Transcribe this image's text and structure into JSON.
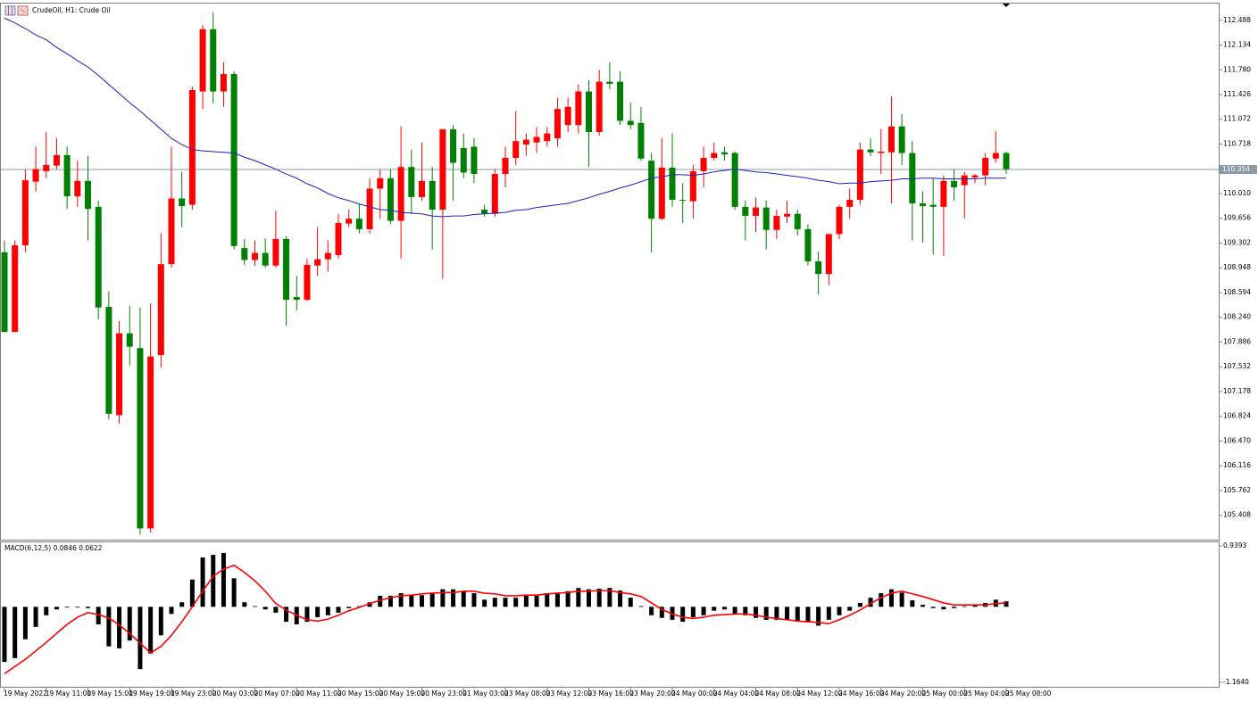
{
  "chart_data": [
    {
      "type": "candlestick",
      "title": "CrudeOil, H1:  Crude Oil",
      "categories": [
        "19 May 2022",
        null,
        null,
        null,
        "19 May 11:00",
        null,
        null,
        null,
        "19 May 15:00",
        null,
        null,
        null,
        "19 May 19:00",
        null,
        null,
        null,
        "19 May 23:00",
        null,
        null,
        null,
        "20 May 03:00",
        null,
        null,
        null,
        "20 May 07:00",
        null,
        null,
        null,
        "20 May 11:00",
        null,
        null,
        null,
        "20 May 15:00",
        null,
        null,
        null,
        "20 May 19:00",
        null,
        null,
        null,
        "20 May 23:00",
        null,
        null,
        null,
        "21 May 03:00",
        null,
        null,
        null,
        "23 May 08:00",
        null,
        null,
        null,
        "23 May 12:00",
        null,
        null,
        null,
        "23 May 16:00",
        null,
        null,
        null,
        "23 May 20:00",
        null,
        null,
        null,
        "24 May 00:00",
        null,
        null,
        null,
        "24 May 04:00",
        null,
        null,
        null,
        "24 May 08:00",
        null,
        null,
        null,
        "24 May 12:00",
        null,
        null,
        null,
        "24 May 16:00",
        null,
        null,
        null,
        "24 May 20:00",
        null,
        null,
        null,
        "25 May 00:00",
        null,
        null,
        null,
        "25 May 04:00",
        null,
        null,
        null,
        "25 May 08:00"
      ],
      "open": [
        109.17,
        108.03,
        109.27,
        110.18,
        110.33,
        110.41,
        110.56,
        109.97,
        110.19,
        109.82,
        108.39,
        106.84,
        108.01,
        107.8,
        105.22,
        107.7,
        109.0,
        109.94,
        109.85,
        111.47,
        112.36,
        111.47,
        111.72,
        109.23,
        109.06,
        109.16,
        108.98,
        109.36,
        108.53,
        108.49,
        108.98,
        109.07,
        109.13,
        109.58,
        109.65,
        109.5,
        110.08,
        110.23,
        109.62,
        110.39,
        109.96,
        110.19,
        109.78,
        110.93,
        110.66,
        110.68,
        109.78,
        109.72,
        110.29,
        110.52,
        110.71,
        110.74,
        110.76,
        110.8,
        110.99,
        110.99,
        111.47,
        110.89,
        111.61,
        111.61,
        111.05,
        111.02,
        110.48,
        109.65,
        110.38,
        109.92,
        109.9,
        110.33,
        110.52,
        110.6,
        110.59,
        109.82,
        109.69,
        109.81,
        109.49,
        109.68,
        109.72,
        109.5,
        109.04,
        108.86,
        109.43,
        109.82,
        109.92,
        110.64,
        110.59,
        110.6,
        110.97,
        110.59,
        109.87,
        109.85,
        109.82,
        110.19,
        110.13,
        110.24,
        110.27,
        110.51,
        110.59
      ],
      "high": [
        109.34,
        109.34,
        110.36,
        110.68,
        110.89,
        110.8,
        110.68,
        110.48,
        110.55,
        109.91,
        108.61,
        108.19,
        108.4,
        108.38,
        108.44,
        109.44,
        110.68,
        110.32,
        111.54,
        112.42,
        112.6,
        111.89,
        111.76,
        109.36,
        109.34,
        109.37,
        109.76,
        109.4,
        108.83,
        109.08,
        109.53,
        109.34,
        109.72,
        109.78,
        109.87,
        110.23,
        110.36,
        110.36,
        110.97,
        110.64,
        110.74,
        110.39,
        110.93,
        110.99,
        110.87,
        110.8,
        109.85,
        110.36,
        110.68,
        111.19,
        110.87,
        110.96,
        110.96,
        111.38,
        111.38,
        111.57,
        111.63,
        111.78,
        111.89,
        111.76,
        111.31,
        111.25,
        110.59,
        110.8,
        110.87,
        110.16,
        110.42,
        110.68,
        110.74,
        110.68,
        110.61,
        109.91,
        109.95,
        109.91,
        109.78,
        109.91,
        109.78,
        109.57,
        109.18,
        109.44,
        109.85,
        110.08,
        110.74,
        110.8,
        110.93,
        111.4,
        111.15,
        110.76,
        110.04,
        110.23,
        110.27,
        110.36,
        110.32,
        110.29,
        110.59,
        110.9,
        110.61
      ],
      "low": [
        108.03,
        108.03,
        109.17,
        110.04,
        110.23,
        110.36,
        109.79,
        109.82,
        109.34,
        108.21,
        106.78,
        106.72,
        107.55,
        105.13,
        105.16,
        107.52,
        108.95,
        109.53,
        109.78,
        111.22,
        111.3,
        111.25,
        109.21,
        108.99,
        108.98,
        108.95,
        108.95,
        108.12,
        108.34,
        108.47,
        108.83,
        108.89,
        109.08,
        109.53,
        109.44,
        109.44,
        109.65,
        109.57,
        109.08,
        109.72,
        109.91,
        109.21,
        108.79,
        109.91,
        110.23,
        110.16,
        109.68,
        109.68,
        110.1,
        110.42,
        110.55,
        110.59,
        110.68,
        110.68,
        110.89,
        110.87,
        110.39,
        110.84,
        111.5,
        110.99,
        110.93,
        110.48,
        109.17,
        109.63,
        109.82,
        109.59,
        109.65,
        110.1,
        110.48,
        110.48,
        109.78,
        109.34,
        109.46,
        109.21,
        109.36,
        109.59,
        109.41,
        108.98,
        108.57,
        108.7,
        109.36,
        109.65,
        109.85,
        110.55,
        110.29,
        109.87,
        110.42,
        109.34,
        109.31,
        109.14,
        109.12,
        109.91,
        109.65,
        110.16,
        110.13,
        110.45,
        110.29
      ],
      "close": [
        108.03,
        109.27,
        110.2,
        110.36,
        110.42,
        110.56,
        109.97,
        110.19,
        109.79,
        108.38,
        106.86,
        108.01,
        107.82,
        105.22,
        107.68,
        109.0,
        109.94,
        109.83,
        111.49,
        112.36,
        111.47,
        111.72,
        109.26,
        109.06,
        109.16,
        108.98,
        109.36,
        108.49,
        108.49,
        108.99,
        109.07,
        109.16,
        109.59,
        109.65,
        109.5,
        110.08,
        110.23,
        109.62,
        110.39,
        109.96,
        110.19,
        109.78,
        110.93,
        110.45,
        110.31,
        110.29,
        109.72,
        110.29,
        110.52,
        110.76,
        110.78,
        110.82,
        110.87,
        111.22,
        111.25,
        111.47,
        110.89,
        111.61,
        111.58,
        111.05,
        110.99,
        110.51,
        109.65,
        110.38,
        109.92,
        109.91,
        110.33,
        110.52,
        110.59,
        110.57,
        109.82,
        109.69,
        109.81,
        109.49,
        109.69,
        109.72,
        109.5,
        109.04,
        108.86,
        109.43,
        109.82,
        109.92,
        110.64,
        110.6,
        110.61,
        110.97,
        110.59,
        109.87,
        109.83,
        109.82,
        110.19,
        110.1,
        110.27,
        110.27,
        110.52,
        110.59,
        110.36
      ],
      "up_color": "#ff0000",
      "down_color": "#008000",
      "series": [
        {
          "color": "#1c1cc8",
          "values": [
            112.52,
            112.45,
            112.37,
            112.28,
            112.21,
            112.1,
            112.01,
            111.91,
            111.82,
            111.7,
            111.57,
            111.44,
            111.31,
            111.19,
            111.06,
            110.93,
            110.8,
            110.71,
            110.64,
            110.62,
            110.61,
            110.6,
            110.59,
            110.53,
            110.48,
            110.42,
            110.36,
            110.29,
            110.23,
            110.15,
            110.09,
            110.01,
            109.95,
            109.91,
            109.86,
            109.82,
            109.78,
            109.77,
            109.74,
            109.73,
            109.72,
            109.69,
            109.68,
            109.69,
            109.69,
            109.71,
            109.72,
            109.73,
            109.74,
            109.77,
            109.78,
            109.81,
            109.83,
            109.85,
            109.87,
            109.91,
            109.95,
            110.0,
            110.04,
            110.09,
            110.13,
            110.18,
            110.23,
            110.25,
            110.28,
            110.28,
            110.27,
            110.29,
            110.32,
            110.34,
            110.36,
            110.34,
            110.32,
            110.31,
            110.29,
            110.27,
            110.25,
            110.23,
            110.2,
            110.18,
            110.15,
            110.16,
            110.16,
            110.18,
            110.19,
            110.2,
            110.22,
            110.22,
            110.23,
            110.23,
            110.22,
            110.22,
            110.22,
            110.22,
            110.23,
            110.23,
            110.23
          ]
        }
      ],
      "price_line": 110.354,
      "price_line_color": "#8a9aa8",
      "ylim": [
        105.06,
        112.74
      ],
      "yticks": [
        112.488,
        112.134,
        {
          "value": 111.78,
          "label": "111.780"
        },
        111.426,
        111.072,
        110.718,
        {
          "value": 110.01,
          "label": "110.010"
        },
        109.656,
        109.302,
        108.948,
        108.594,
        {
          "value": 108.24,
          "label": "108.240"
        },
        107.886,
        107.532,
        107.178,
        106.824,
        {
          "value": 106.47,
          "label": "106.470"
        },
        106.116,
        105.762,
        105.408
      ]
    },
    {
      "type": "macd",
      "label": "MACD(6,12,5) 0.0846 0.0622",
      "values": [
        -0.85,
        -0.79,
        -0.5,
        -0.31,
        -0.13,
        -0.04,
        -0.01,
        -0.01,
        -0.02,
        -0.27,
        -0.61,
        -0.64,
        -0.52,
        -0.96,
        -0.72,
        -0.44,
        -0.11,
        0.07,
        0.42,
        0.76,
        0.8,
        0.83,
        0.44,
        0.07,
        0.01,
        -0.04,
        -0.09,
        -0.23,
        -0.27,
        -0.23,
        -0.16,
        -0.13,
        -0.09,
        -0.02,
        0.01,
        0.07,
        0.17,
        0.17,
        0.21,
        0.18,
        0.18,
        0.22,
        0.27,
        0.27,
        0.24,
        0.21,
        0.11,
        0.14,
        0.14,
        0.14,
        0.17,
        0.17,
        0.21,
        0.22,
        0.24,
        0.29,
        0.27,
        0.28,
        0.29,
        0.25,
        0.14,
        0.01,
        -0.13,
        -0.17,
        -0.2,
        -0.23,
        -0.16,
        -0.13,
        -0.06,
        -0.04,
        -0.11,
        -0.13,
        -0.17,
        -0.2,
        -0.2,
        -0.2,
        -0.22,
        -0.24,
        -0.29,
        -0.2,
        -0.13,
        -0.06,
        0.06,
        0.14,
        0.21,
        0.27,
        0.22,
        0.1,
        0.03,
        -0.02,
        -0.04,
        -0.02,
        0.01,
        0.03,
        0.06,
        0.11,
        0.0846
      ],
      "color": "#000000",
      "signal": [
        -1.03,
        -0.92,
        -0.81,
        -0.68,
        -0.55,
        -0.41,
        -0.27,
        -0.16,
        -0.09,
        -0.12,
        -0.17,
        -0.28,
        -0.41,
        -0.56,
        -0.71,
        -0.61,
        -0.44,
        -0.23,
        0.0,
        0.24,
        0.47,
        0.58,
        0.64,
        0.53,
        0.4,
        0.24,
        0.05,
        -0.05,
        -0.13,
        -0.2,
        -0.22,
        -0.19,
        -0.13,
        -0.06,
        -0.01,
        0.05,
        0.1,
        0.14,
        0.17,
        0.18,
        0.2,
        0.21,
        0.22,
        0.22,
        0.24,
        0.24,
        0.21,
        0.2,
        0.17,
        0.17,
        0.18,
        0.18,
        0.2,
        0.21,
        0.22,
        0.24,
        0.24,
        0.25,
        0.25,
        0.22,
        0.2,
        0.16,
        0.06,
        -0.04,
        -0.11,
        -0.16,
        -0.18,
        -0.16,
        -0.13,
        -0.12,
        -0.11,
        -0.11,
        -0.13,
        -0.16,
        -0.18,
        -0.2,
        -0.22,
        -0.23,
        -0.24,
        -0.26,
        -0.2,
        -0.13,
        -0.05,
        0.05,
        0.14,
        0.21,
        0.24,
        0.2,
        0.16,
        0.11,
        0.06,
        0.03,
        0.03,
        0.03,
        0.03,
        0.05,
        0.0622
      ],
      "signal_color": "#ff0000",
      "ylim": [
        -1.233,
        1.008
      ],
      "yticks": [
        0.9393,
        {
          "value": -1.164,
          "label": "-1.1640"
        }
      ]
    }
  ]
}
